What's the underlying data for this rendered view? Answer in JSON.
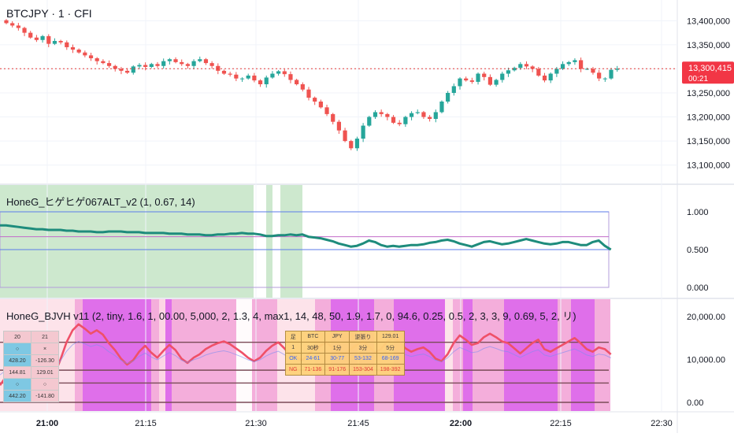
{
  "header": {
    "symbol_title": "BTCJPY · 1 · CFI"
  },
  "price_axis": {
    "ticks": [
      "13,400,000",
      "13,350,000",
      "13,300,000",
      "13,250,000",
      "13,200,000",
      "13,150,000",
      "13,100,000"
    ],
    "last_price": "13,300,415",
    "countdown": "00:21"
  },
  "indicator1": {
    "title": "HoneG_ヒゲヒゲ067ALT_v2 (1, 0.67, 14)",
    "axis_ticks": [
      "1.000",
      "0.500",
      "0.000"
    ]
  },
  "indicator2": {
    "title": "HoneG_BJVH v11 (2, tiny, 1.6, 1, 00.00, 5,000, 2, 1.3, 4, max1, 14, 48, 50, 1.9, 1.7, 0, 94.6, 0.25, 0.5, 2, 3, 3, 9, 0.69, 5, 2, リ)",
    "axis_ticks": [
      "20,000.00",
      "10,000.00",
      "0.00"
    ]
  },
  "time_axis": {
    "ticks": [
      "21:00",
      "21:15",
      "21:30",
      "21:45",
      "22:00",
      "22:15",
      "22:30"
    ]
  },
  "stats_table": {
    "rows": [
      [
        "足",
        "BTC",
        "JPY",
        "逆張り",
        "129.01"
      ],
      [
        "1",
        "30秒",
        "1分",
        "3分",
        "5分"
      ],
      [
        "OK",
        "24-61",
        "30-77",
        "53-132",
        "68-169"
      ],
      [
        "NG",
        "71-136",
        "91-176",
        "153-304",
        "198-392"
      ]
    ]
  },
  "left_table": {
    "rows": [
      [
        "20",
        "21"
      ],
      [
        "○",
        "×"
      ],
      [
        "428.20",
        "-126.30"
      ],
      [
        "144.81",
        "129.01"
      ],
      [
        "○",
        "○"
      ],
      [
        "442.20",
        "-141.80"
      ]
    ]
  },
  "colors": {
    "up": "#26a69a",
    "down": "#ef5350",
    "osc_line": "#1e8c7c",
    "rsi_line": "#ef5068",
    "band_pink": "#f2a5d8",
    "band_magenta": "#d95bea"
  },
  "chart_data": [
    {
      "type": "candlestick",
      "title": "BTCJPY · 1 · CFI",
      "ylim": [
        13070000,
        13430000
      ],
      "last_price": 13300415,
      "x_ticks": [
        "21:00",
        "21:15",
        "21:30",
        "21:45",
        "22:00",
        "22:15",
        "22:30"
      ],
      "close": [
        13395000,
        13390000,
        13385000,
        13375000,
        13365000,
        13360000,
        13368000,
        13352000,
        13358000,
        13355000,
        13345000,
        13340000,
        13334000,
        13328000,
        13322000,
        13316000,
        13312000,
        13306000,
        13300000,
        13296000,
        13292000,
        13305000,
        13308000,
        13304000,
        13310000,
        13306000,
        13316000,
        13320000,
        13314000,
        13310000,
        13306000,
        13316000,
        13320000,
        13312000,
        13306000,
        13296000,
        13290000,
        13288000,
        13280000,
        13280000,
        13286000,
        13276000,
        13268000,
        13282000,
        13290000,
        13295000,
        13289000,
        13277000,
        13268000,
        13257000,
        13240000,
        13232000,
        13220000,
        13206000,
        13190000,
        13172000,
        13150000,
        13135000,
        13155000,
        13182000,
        13200000,
        13210000,
        13206000,
        13200000,
        13188000,
        13185000,
        13200000,
        13208000,
        13210000,
        13200000,
        13196000,
        13210000,
        13232000,
        13250000,
        13264000,
        13280000,
        13276000,
        13273000,
        13290000,
        13283000,
        13267000,
        13277000,
        13290000,
        13297000,
        13302000,
        13310000,
        13305000,
        13300000,
        13286000,
        13276000,
        13290000,
        13300000,
        13310000,
        13314000,
        13318000,
        13300000,
        13300000,
        13292000,
        13280000,
        13280000,
        13298000,
        13300415
      ]
    },
    {
      "type": "line",
      "title": "HoneG_ヒゲヒゲ067ALT_v2 (1, 0.67, 14)",
      "ylim": [
        0,
        1
      ],
      "hlines": [
        1.0,
        0.67,
        0.5
      ],
      "values": [
        0.82,
        0.82,
        0.81,
        0.8,
        0.79,
        0.78,
        0.77,
        0.77,
        0.76,
        0.76,
        0.76,
        0.75,
        0.75,
        0.74,
        0.74,
        0.74,
        0.73,
        0.73,
        0.74,
        0.74,
        0.74,
        0.73,
        0.73,
        0.73,
        0.72,
        0.72,
        0.72,
        0.72,
        0.71,
        0.71,
        0.71,
        0.7,
        0.7,
        0.7,
        0.69,
        0.69,
        0.7,
        0.7,
        0.71,
        0.71,
        0.72,
        0.71,
        0.71,
        0.7,
        0.68,
        0.68,
        0.69,
        0.69,
        0.7,
        0.69,
        0.7,
        0.67,
        0.66,
        0.65,
        0.63,
        0.61,
        0.58,
        0.56,
        0.54,
        0.55,
        0.58,
        0.62,
        0.6,
        0.56,
        0.54,
        0.55,
        0.54,
        0.55,
        0.56,
        0.56,
        0.57,
        0.59,
        0.6,
        0.62,
        0.63,
        0.61,
        0.58,
        0.56,
        0.54,
        0.57,
        0.6,
        0.61,
        0.59,
        0.57,
        0.58,
        0.6,
        0.62,
        0.64,
        0.62,
        0.6,
        0.58,
        0.57,
        0.58,
        0.6,
        0.6,
        0.58,
        0.56,
        0.56,
        0.6,
        0.62,
        0.55,
        0.5
      ]
    },
    {
      "type": "line",
      "title": "HoneG_BJVH v11 (2, tiny, 1.6, 1, 00.00, 5,000, 2, 1.3, 4, max1, 14, 48, 50, 1.9, 1.7, 0, 94.6, 0.25, 0.5, 2, 3, 3, 9, 0.69, 5, 2, リ)",
      "ylim": [
        -1500,
        23500
      ],
      "hlines": [
        14000,
        7500,
        4500,
        0
      ],
      "values": [
        4000,
        6000,
        7800,
        9200,
        9800,
        8000,
        6200,
        5400,
        5000,
        6400,
        10000,
        14000,
        16800,
        18200,
        17200,
        16000,
        16800,
        15800,
        13800,
        12200,
        10200,
        8800,
        9800,
        11800,
        13200,
        11600,
        10400,
        12000,
        13400,
        12200,
        10200,
        9200,
        10400,
        11200,
        12400,
        13200,
        13800,
        14200,
        13600,
        12600,
        11600,
        10400,
        9600,
        10400,
        12000,
        13200,
        14000,
        12600,
        11000,
        10400,
        9800,
        11200,
        12600,
        13200,
        14000,
        12800,
        11800,
        11400,
        12400,
        13400,
        14200,
        13000,
        11600,
        12400,
        14200,
        15000,
        14200,
        12600,
        11800,
        12400,
        12800,
        11800,
        10200,
        9600,
        11200,
        13800,
        15600,
        14600,
        13400,
        13800,
        15200,
        16000,
        15200,
        14200,
        13800,
        12600,
        11400,
        12600,
        13800,
        14600,
        12400,
        11800,
        12600,
        13400,
        14200,
        15000,
        13800,
        12400,
        11800,
        12800,
        12400,
        11200
      ]
    }
  ]
}
